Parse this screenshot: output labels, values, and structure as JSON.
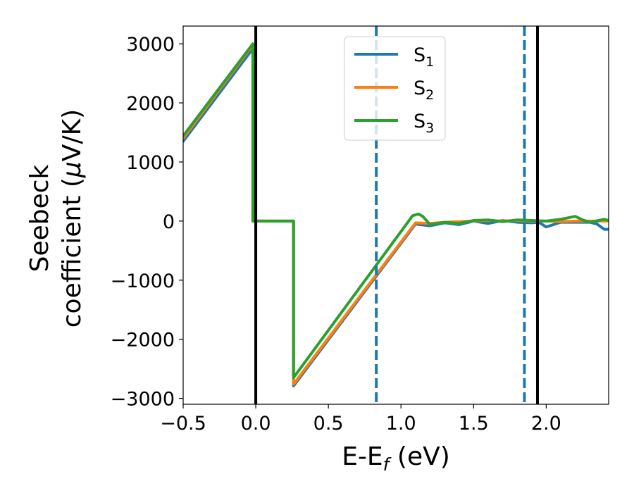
{
  "chart_data": {
    "type": "line",
    "xlabel_main": "E-E",
    "xlabel_sub": "f",
    "xlabel_unit": " (eV)",
    "ylabel_line1": "Seebeck",
    "ylabel_line2_prefix": "coefficient  (",
    "ylabel_mu": "μ",
    "ylabel_line2_suffix": "V/K)",
    "xlim": [
      -0.5,
      2.43
    ],
    "ylim": [
      -3100,
      3300
    ],
    "xticks": [
      -0.5,
      0.0,
      0.5,
      1.0,
      1.5,
      2.0
    ],
    "xtick_labels": [
      "−0.5",
      "0.0",
      "0.5",
      "1.0",
      "1.5",
      "2.0"
    ],
    "yticks": [
      -3000,
      -2000,
      -1000,
      0,
      1000,
      2000,
      3000
    ],
    "ytick_labels": [
      "−3000",
      "−2000",
      "−1000",
      "0",
      "1000",
      "2000",
      "3000"
    ],
    "grid": false,
    "legend_position": "top-center",
    "vlines": [
      {
        "x": 0.0,
        "style": "solid",
        "color": "#000000"
      },
      {
        "x": 1.94,
        "style": "solid",
        "color": "#000000"
      },
      {
        "x": 0.83,
        "style": "dashed",
        "color": "#1f77b4"
      },
      {
        "x": 1.85,
        "style": "dashed",
        "color": "#1f77b4"
      }
    ],
    "series": [
      {
        "legend_main": "S",
        "legend_sub": "1",
        "color": "#1f77b4",
        "x": [
          -0.5,
          -0.02,
          -0.02,
          0.26,
          0.26,
          1.1,
          1.2,
          1.3,
          1.4,
          1.5,
          1.6,
          1.7,
          1.8,
          1.9,
          1.95,
          2.0,
          2.1,
          2.2,
          2.3,
          2.35,
          2.4,
          2.43
        ],
        "y": [
          1350,
          2920,
          0,
          0,
          -2790,
          -50,
          -80,
          -30,
          -60,
          0,
          -40,
          10,
          -20,
          -30,
          -20,
          -100,
          -20,
          -20,
          -20,
          -50,
          -140,
          -140
        ]
      },
      {
        "legend_main": "S",
        "legend_sub": "2",
        "color": "#ff7f0e",
        "x": [
          -0.5,
          -0.02,
          -0.02,
          0.26,
          0.26,
          1.1,
          1.2,
          1.3,
          1.4,
          1.5,
          1.6,
          1.7,
          1.8,
          1.9,
          2.0,
          2.1,
          2.2,
          2.3,
          2.43
        ],
        "y": [
          1400,
          2980,
          0,
          0,
          -2760,
          -30,
          -40,
          -20,
          -10,
          0,
          10,
          0,
          10,
          0,
          0,
          -10,
          0,
          0,
          0
        ]
      },
      {
        "legend_main": "S",
        "legend_sub": "3",
        "color": "#2ca02c",
        "x": [
          -0.5,
          -0.02,
          -0.02,
          0.26,
          0.26,
          1.08,
          1.12,
          1.15,
          1.2,
          1.3,
          1.4,
          1.5,
          1.6,
          1.7,
          1.8,
          1.9,
          2.0,
          2.1,
          2.2,
          2.25,
          2.3,
          2.4,
          2.43
        ],
        "y": [
          1440,
          3000,
          0,
          0,
          -2650,
          90,
          120,
          80,
          -60,
          -20,
          -40,
          10,
          20,
          -10,
          20,
          10,
          0,
          30,
          80,
          20,
          -20,
          30,
          10
        ]
      }
    ]
  }
}
